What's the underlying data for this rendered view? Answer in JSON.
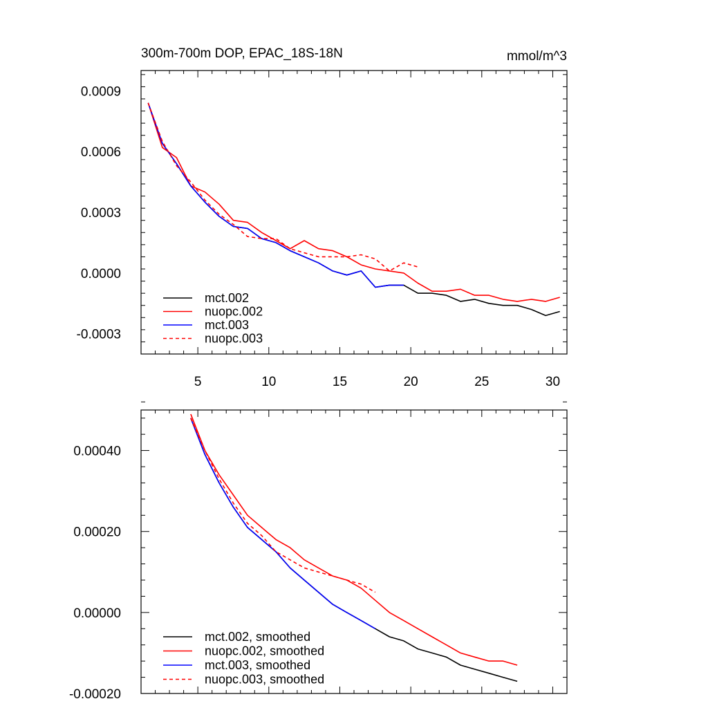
{
  "chart_data": [
    {
      "type": "line",
      "title": "300m-700m DOP, EPAC_18S-18N",
      "units": "mmol/m^3",
      "xlim": [
        1,
        31
      ],
      "ylim": [
        -0.0004,
        0.001
      ],
      "x_ticks": [
        5,
        10,
        15,
        20,
        25,
        30
      ],
      "x_tick_labels": [
        "5",
        "10",
        "15",
        "20",
        "25",
        "30"
      ],
      "y_ticks": [
        -0.0003,
        0.0,
        0.0003,
        0.0006,
        0.0009
      ],
      "y_tick_labels": [
        "-0.0003",
        "0.0000",
        "0.0003",
        "0.0006",
        "0.0009"
      ],
      "legend_position": "bottom-left",
      "series": [
        {
          "name": "mct.002",
          "color": "#000000",
          "dash": "solid",
          "x": [
            1.5,
            2.5,
            3.5,
            4.5,
            5.5,
            6.5,
            7.5,
            8.5,
            9.5,
            10.5,
            11.5,
            12.5,
            13.5,
            14.5,
            15.5,
            16.5,
            17.5,
            18.5,
            19.5,
            20.5,
            21.5,
            22.5,
            23.5,
            24.5,
            25.5,
            26.5,
            27.5,
            28.5,
            29.5,
            30.5
          ],
          "values": [
            0.00084,
            0.00064,
            0.00054,
            0.00043,
            0.00035,
            0.00028,
            0.00023,
            0.00022,
            0.00017,
            0.00015,
            0.00011,
            8e-05,
            5e-05,
            1e-05,
            -1e-05,
            1e-05,
            -7e-05,
            -6e-05,
            -6e-05,
            -0.0001,
            -0.0001,
            -0.00011,
            -0.00014,
            -0.00013,
            -0.00015,
            -0.00016,
            -0.00016,
            -0.00018,
            -0.00021,
            -0.00019
          ]
        },
        {
          "name": "nuopc.002",
          "color": "#ff0000",
          "dash": "solid",
          "x": [
            1.5,
            2.5,
            3.5,
            4.5,
            5.5,
            6.5,
            7.5,
            8.5,
            9.5,
            10.5,
            11.5,
            12.5,
            13.5,
            14.5,
            15.5,
            16.5,
            17.5,
            18.5,
            19.5,
            20.5,
            21.5,
            22.5,
            23.5,
            24.5,
            25.5,
            26.5,
            27.5,
            28.5,
            29.5,
            30.5
          ],
          "values": [
            0.00084,
            0.00062,
            0.00057,
            0.00043,
            0.0004,
            0.00034,
            0.00026,
            0.00025,
            0.0002,
            0.00016,
            0.00012,
            0.00016,
            0.00012,
            0.00011,
            8e-05,
            4e-05,
            2e-05,
            1e-05,
            0.0,
            -5e-05,
            -9e-05,
            -9e-05,
            -8e-05,
            -0.00011,
            -0.00011,
            -0.00013,
            -0.00014,
            -0.00013,
            -0.00014,
            -0.00012
          ]
        },
        {
          "name": "mct.003",
          "color": "#0000ff",
          "dash": "solid",
          "x": [
            1.5,
            2.5,
            3.5,
            4.5,
            5.5,
            6.5,
            7.5,
            8.5,
            9.5,
            10.5,
            11.5,
            12.5,
            13.5,
            14.5,
            15.5,
            16.5,
            17.5,
            18.5,
            19.5
          ],
          "values": [
            0.00084,
            0.00064,
            0.00054,
            0.00043,
            0.00035,
            0.00028,
            0.00023,
            0.00022,
            0.00017,
            0.00015,
            0.00011,
            8e-05,
            5e-05,
            1e-05,
            -1e-05,
            1e-05,
            -7e-05,
            -6e-05,
            -6e-05
          ]
        },
        {
          "name": "nuopc.003",
          "color": "#ff0000",
          "dash": "dashed",
          "x": [
            1.5,
            2.5,
            3.5,
            4.5,
            5.5,
            6.5,
            7.5,
            8.5,
            9.5,
            10.5,
            11.5,
            12.5,
            13.5,
            14.5,
            15.5,
            16.5,
            17.5,
            18.5,
            19.5,
            20.5
          ],
          "values": [
            0.00084,
            0.00065,
            0.00053,
            0.00045,
            0.00036,
            0.00029,
            0.00024,
            0.00018,
            0.00017,
            0.00017,
            0.00012,
            0.0001,
            8e-05,
            8e-05,
            8e-05,
            9e-05,
            7e-05,
            1e-05,
            5e-05,
            3e-05
          ]
        }
      ]
    },
    {
      "type": "line",
      "xlim": [
        1,
        31
      ],
      "ylim": [
        -0.0002,
        0.0005
      ],
      "x_ticks": [
        5,
        10,
        15,
        20,
        25,
        30
      ],
      "y_ticks": [
        -0.0002,
        0.0,
        0.0002,
        0.0004
      ],
      "y_tick_labels": [
        "-0.00020",
        "0.00000",
        "0.00020",
        "0.00040"
      ],
      "legend_position": "bottom-left",
      "series": [
        {
          "name": "mct.002, smoothed",
          "color": "#000000",
          "dash": "solid",
          "x": [
            4.5,
            5.5,
            6.5,
            7.5,
            8.5,
            9.5,
            10.5,
            11.5,
            12.5,
            13.5,
            14.5,
            15.5,
            16.5,
            17.5,
            18.5,
            19.5,
            20.5,
            21.5,
            22.5,
            23.5,
            24.5,
            25.5,
            26.5,
            27.5
          ],
          "values": [
            0.00048,
            0.00039,
            0.00032,
            0.00026,
            0.00021,
            0.00018,
            0.00015,
            0.00011,
            8e-05,
            5e-05,
            2e-05,
            0.0,
            -2e-05,
            -4e-05,
            -6e-05,
            -7e-05,
            -9e-05,
            -0.0001,
            -0.00011,
            -0.00013,
            -0.00014,
            -0.00015,
            -0.00016,
            -0.00017
          ]
        },
        {
          "name": "nuopc.002, smoothed",
          "color": "#ff0000",
          "dash": "solid",
          "x": [
            4.5,
            5.5,
            6.5,
            7.5,
            8.5,
            9.5,
            10.5,
            11.5,
            12.5,
            13.5,
            14.5,
            15.5,
            16.5,
            17.5,
            18.5,
            19.5,
            20.5,
            21.5,
            22.5,
            23.5,
            24.5,
            25.5,
            26.5,
            27.5
          ],
          "values": [
            0.00049,
            0.0004,
            0.00034,
            0.00029,
            0.00024,
            0.00021,
            0.00018,
            0.00016,
            0.00013,
            0.00011,
            9e-05,
            8e-05,
            6e-05,
            3e-05,
            0.0,
            -2e-05,
            -4e-05,
            -6e-05,
            -8e-05,
            -0.0001,
            -0.00011,
            -0.00012,
            -0.00012,
            -0.00013
          ]
        },
        {
          "name": "mct.003, smoothed",
          "color": "#0000ff",
          "dash": "solid",
          "x": [
            4.5,
            5.5,
            6.5,
            7.5,
            8.5,
            9.5,
            10.5,
            11.5,
            12.5,
            13.5,
            14.5,
            15.5,
            16.5,
            17.5
          ],
          "values": [
            0.00048,
            0.00039,
            0.00032,
            0.00026,
            0.00021,
            0.00018,
            0.00015,
            0.00011,
            8e-05,
            5e-05,
            2e-05,
            0.0,
            -2e-05,
            -4e-05
          ]
        },
        {
          "name": "nuopc.003, smoothed",
          "color": "#ff0000",
          "dash": "dashed",
          "x": [
            4.5,
            5.5,
            6.5,
            7.5,
            8.5,
            9.5,
            10.5,
            11.5,
            12.5,
            13.5,
            14.5,
            15.5,
            16.5,
            17.5
          ],
          "values": [
            0.00048,
            0.0004,
            0.00033,
            0.00027,
            0.00022,
            0.00019,
            0.00015,
            0.00013,
            0.00011,
            0.0001,
            9e-05,
            8e-05,
            7e-05,
            5e-05
          ]
        }
      ]
    }
  ]
}
